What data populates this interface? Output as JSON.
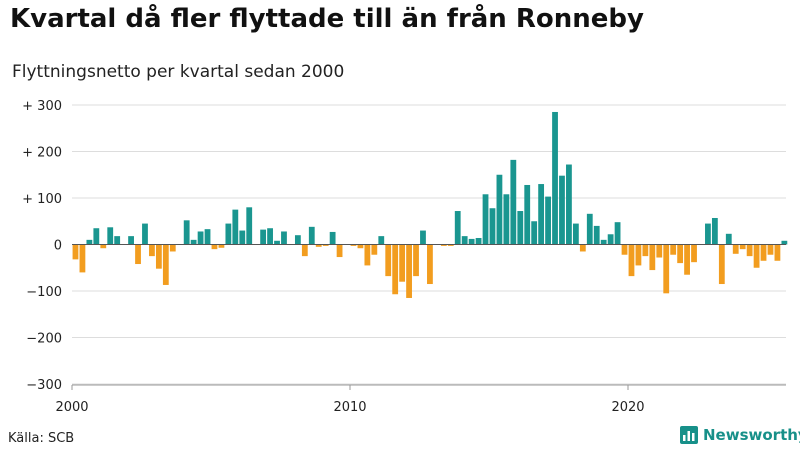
{
  "header": {
    "title": "Kvartal då fler flyttade till än från Ronneby",
    "subtitle": "Flyttningsnetto per kvartal sedan 2000"
  },
  "footer": {
    "source": "Källa: SCB",
    "brand": "Newsworthy"
  },
  "colors": {
    "positive": "#1a9690",
    "negative": "#f29d1f",
    "grid": "#dddddd",
    "brand": "#179089"
  },
  "chart_data": {
    "type": "bar",
    "x_start": "2000 Q1",
    "ylim": [
      -300,
      300
    ],
    "y_ticks": [
      {
        "value": 300,
        "label": "+ 300"
      },
      {
        "value": 200,
        "label": "+ 200"
      },
      {
        "value": 100,
        "label": "+ 100"
      },
      {
        "value": 0,
        "label": "0"
      },
      {
        "value": -100,
        "label": "−100"
      },
      {
        "value": -200,
        "label": "−200"
      },
      {
        "value": -300,
        "label": "−300"
      }
    ],
    "x_ticks": [
      {
        "quarter_index": 0,
        "label": "2000"
      },
      {
        "quarter_index": 40,
        "label": "2010"
      },
      {
        "quarter_index": 80,
        "label": "2020"
      }
    ],
    "values": [
      -32,
      -60,
      10,
      35,
      -8,
      37,
      18,
      0,
      18,
      -42,
      45,
      -25,
      -52,
      -87,
      -15,
      0,
      52,
      10,
      28,
      33,
      -10,
      -7,
      45,
      75,
      30,
      80,
      0,
      32,
      35,
      8,
      28,
      0,
      20,
      -25,
      38,
      -5,
      -3,
      27,
      -27,
      0,
      -3,
      -8,
      -45,
      -22,
      18,
      -68,
      -107,
      -80,
      -115,
      -68,
      30,
      -85,
      0,
      -3,
      -3,
      72,
      18,
      12,
      14,
      108,
      78,
      150,
      108,
      182,
      72,
      128,
      50,
      130,
      103,
      285,
      148,
      172,
      45,
      -15,
      66,
      40,
      10,
      22,
      48,
      -22,
      -68,
      -45,
      -25,
      -55,
      -28,
      -105,
      -22,
      -40,
      -65,
      -38,
      0,
      45,
      57,
      -85,
      23,
      -20,
      -10,
      -25,
      -50,
      -35,
      -22,
      -35,
      8
    ]
  }
}
